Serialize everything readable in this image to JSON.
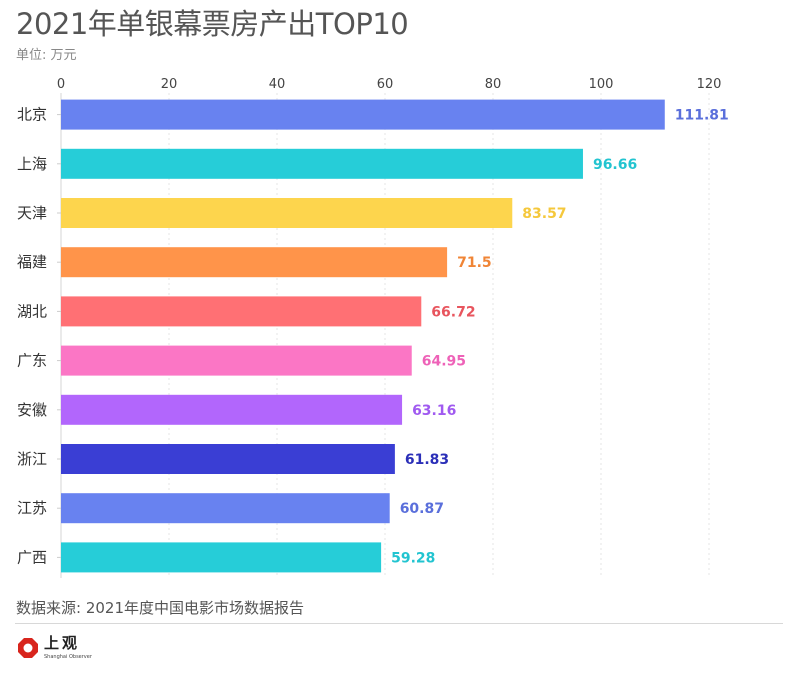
{
  "header": {
    "title": "2021年单银幕票房产出TOP10",
    "unit": "单位: 万元"
  },
  "chart_data": {
    "type": "bar",
    "orientation": "horizontal",
    "title": "2021年单银幕票房产出TOP10",
    "xlabel": "单位: 万元",
    "ylabel": "",
    "xlim": [
      0,
      120
    ],
    "x_ticks": [
      0,
      20,
      40,
      60,
      80,
      100,
      120
    ],
    "grid": true,
    "categories": [
      "北京",
      "上海",
      "天津",
      "福建",
      "湖北",
      "广东",
      "安徽",
      "浙江",
      "江苏",
      "广西"
    ],
    "values": [
      111.81,
      96.66,
      83.57,
      71.5,
      66.72,
      64.95,
      63.16,
      61.83,
      60.87,
      59.28
    ],
    "value_labels": [
      "111.81",
      "96.66",
      "83.57",
      "71.5",
      "66.72",
      "64.95",
      "63.16",
      "61.83",
      "60.87",
      "59.28"
    ],
    "bar_colors": [
      "#6882F0",
      "#26CDD8",
      "#FDD54D",
      "#FF944A",
      "#FF7074",
      "#FB76C5",
      "#B266FC",
      "#3A3ED4",
      "#6882F0",
      "#26CDD8"
    ],
    "label_colors": [
      "#5A6FDB",
      "#22C4D0",
      "#F5C83C",
      "#F08536",
      "#E8555E",
      "#EE62B8",
      "#A05AF0",
      "#2B2FB8",
      "#5A6FDB",
      "#22C4D0"
    ]
  },
  "footer": {
    "source": "数据来源: 2021年度中国电影市场数据报告",
    "logo_cn": "上观",
    "logo_en": "Shanghai Observer",
    "logo_color": "#D8251D"
  }
}
